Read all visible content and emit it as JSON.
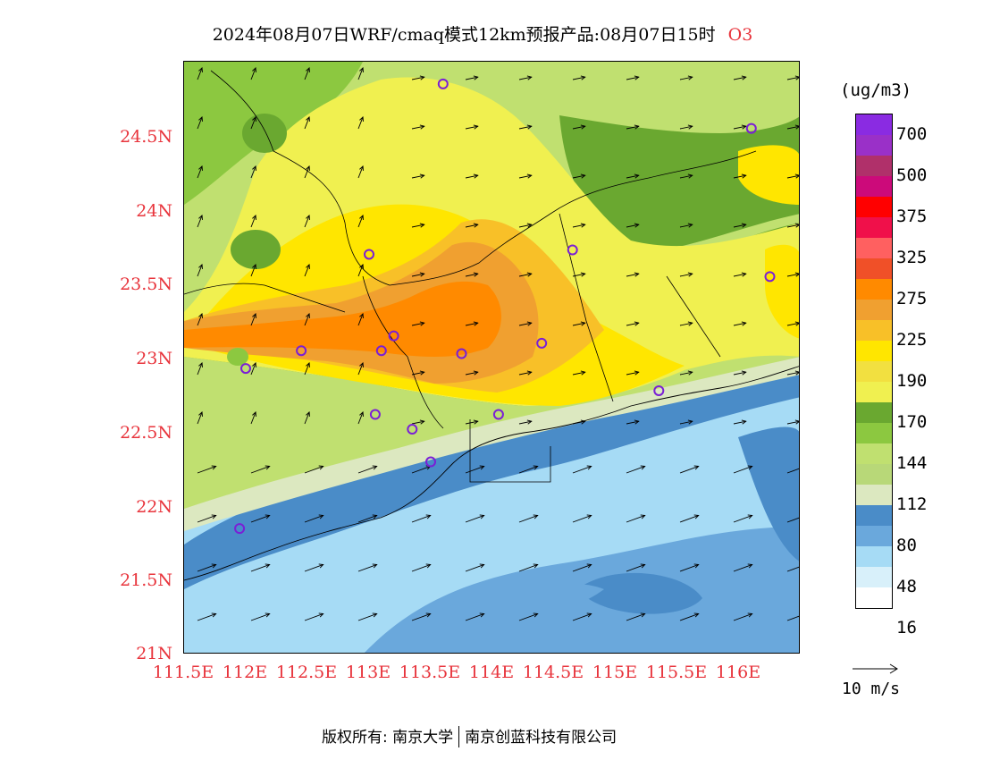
{
  "title": {
    "text": "2024年08月07日WRF/cmaq模式12km预报产品:08月07日15时",
    "species": "O3"
  },
  "axes": {
    "y_labels": [
      "24.5N",
      "24N",
      "23.5N",
      "23N",
      "22.5N",
      "22N",
      "21.5N",
      "21N"
    ],
    "x_labels": [
      "111.5E",
      "112E",
      "112.5E",
      "113E",
      "113.5E",
      "114E",
      "114.5E",
      "115E",
      "115.5E",
      "116E"
    ],
    "lon_range": [
      111.5,
      116.5
    ],
    "lat_range": [
      21.0,
      25.0
    ]
  },
  "legend": {
    "units": "(ug/m3)",
    "labels": [
      "700",
      "500",
      "375",
      "325",
      "275",
      "225",
      "190",
      "170",
      "144",
      "112",
      "80",
      "48",
      "16"
    ],
    "colors_top_to_bottom": [
      "#8a2be2",
      "#9a30c8",
      "#b0306a",
      "#cc0a7a",
      "#ff0000",
      "#f0104a",
      "#ff6060",
      "#f05028",
      "#ff8a00",
      "#f0a030",
      "#f8c028",
      "#ffe600",
      "#f2e040",
      "#f0f050",
      "#6aa830",
      "#8cc840",
      "#c0e070",
      "#b8d878",
      "#dce8c0",
      "#4a8cc8",
      "#6aa8dc",
      "#a6dbf5",
      "#d8f0fa",
      "#ffffff"
    ]
  },
  "wind_reference": {
    "label": "10 m/s"
  },
  "stations": [
    {
      "lon": 113.6,
      "lat": 24.85
    },
    {
      "lon": 116.1,
      "lat": 24.55
    },
    {
      "lon": 113.0,
      "lat": 23.7
    },
    {
      "lon": 114.65,
      "lat": 23.73
    },
    {
      "lon": 116.25,
      "lat": 23.55
    },
    {
      "lon": 113.2,
      "lat": 23.15
    },
    {
      "lon": 113.1,
      "lat": 23.05
    },
    {
      "lon": 112.45,
      "lat": 23.05
    },
    {
      "lon": 112.0,
      "lat": 22.93
    },
    {
      "lon": 113.75,
      "lat": 23.03
    },
    {
      "lon": 114.4,
      "lat": 23.1
    },
    {
      "lon": 115.35,
      "lat": 22.78
    },
    {
      "lon": 113.05,
      "lat": 22.62
    },
    {
      "lon": 113.35,
      "lat": 22.52
    },
    {
      "lon": 114.05,
      "lat": 22.62
    },
    {
      "lon": 113.5,
      "lat": 22.3
    },
    {
      "lon": 111.95,
      "lat": 21.85
    }
  ],
  "copyright": {
    "left": "版权所有: 南京大学",
    "right": "南京创蓝科技有限公司"
  }
}
